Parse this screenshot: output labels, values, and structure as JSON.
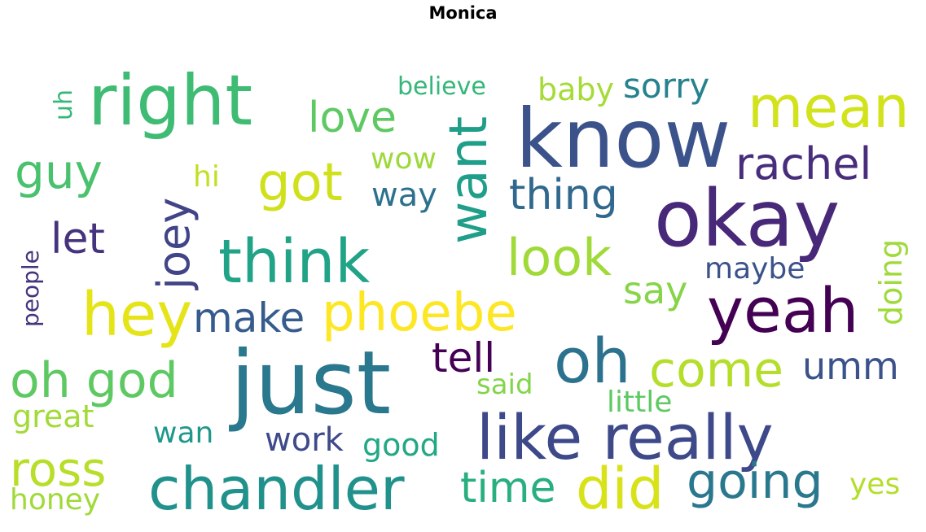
{
  "title": "Monica",
  "words": [
    {
      "text": "know",
      "color": "#3b528b"
    },
    {
      "text": "okay",
      "color": "#482878"
    },
    {
      "text": "just",
      "color": "#2a788e"
    },
    {
      "text": "right",
      "color": "#3fbc73"
    },
    {
      "text": "like really",
      "color": "#3e4989"
    },
    {
      "text": "chandler",
      "color": "#21918c"
    },
    {
      "text": "oh",
      "color": "#2c728e"
    },
    {
      "text": "yeah",
      "color": "#440154"
    },
    {
      "text": "think",
      "color": "#20a386"
    },
    {
      "text": "mean",
      "color": "#d2e21b"
    },
    {
      "text": "hey",
      "color": "#e5e419"
    },
    {
      "text": "phoebe",
      "color": "#fde725"
    },
    {
      "text": "want",
      "color": "#1f9e89"
    },
    {
      "text": "did",
      "color": "#d8e219"
    },
    {
      "text": "oh god",
      "color": "#5ec962"
    },
    {
      "text": "got",
      "color": "#d0e11c"
    },
    {
      "text": "going",
      "color": "#2a788e"
    },
    {
      "text": "look",
      "color": "#a0da39"
    },
    {
      "text": "come",
      "color": "#b5de2b"
    },
    {
      "text": "guy",
      "color": "#4ac16d"
    },
    {
      "text": "ross",
      "color": "#b8de29"
    },
    {
      "text": "joey",
      "color": "#414487"
    },
    {
      "text": "rachel",
      "color": "#472d7b"
    },
    {
      "text": "love",
      "color": "#5ec962"
    },
    {
      "text": "thing",
      "color": "#31688e"
    },
    {
      "text": "time",
      "color": "#29af7f"
    },
    {
      "text": "let",
      "color": "#46337e"
    },
    {
      "text": "make",
      "color": "#365c8d"
    },
    {
      "text": "tell",
      "color": "#440154"
    },
    {
      "text": "sorry",
      "color": "#26828e"
    },
    {
      "text": "umm",
      "color": "#3b528b"
    },
    {
      "text": "say",
      "color": "#86d549"
    },
    {
      "text": "baby",
      "color": "#a5db36"
    },
    {
      "text": "doing",
      "color": "#9fda3a"
    },
    {
      "text": "maybe",
      "color": "#3b528b"
    },
    {
      "text": "good",
      "color": "#22a884"
    },
    {
      "text": "work",
      "color": "#3e4a89"
    },
    {
      "text": "wan",
      "color": "#1f988b"
    },
    {
      "text": "little",
      "color": "#5ec962"
    },
    {
      "text": "said",
      "color": "#84d44b"
    },
    {
      "text": "great",
      "color": "#a2da37"
    },
    {
      "text": "honey",
      "color": "#a0da39"
    },
    {
      "text": "yes",
      "color": "#b5de2b"
    },
    {
      "text": "way",
      "color": "#2c728e"
    },
    {
      "text": "wow",
      "color": "#9dd93b"
    },
    {
      "text": "hi",
      "color": "#c2df23"
    },
    {
      "text": "uh",
      "color": "#35b779"
    },
    {
      "text": "people",
      "color": "#46337e"
    },
    {
      "text": "believe",
      "color": "#35b779"
    }
  ]
}
